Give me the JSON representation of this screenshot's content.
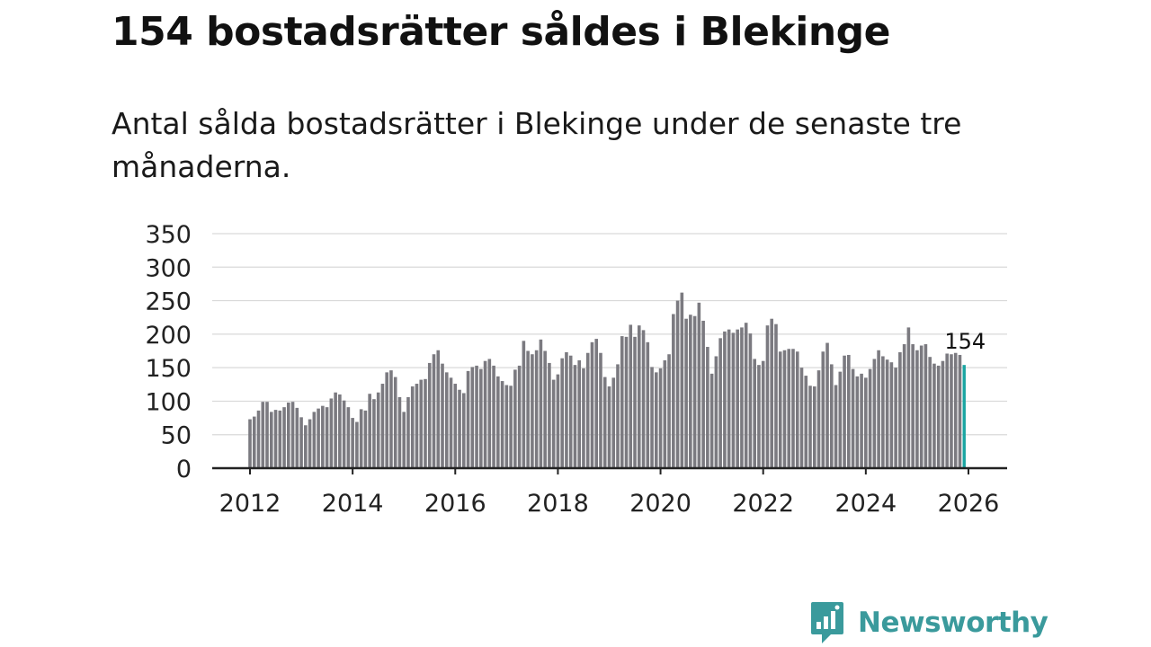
{
  "title": "154 bostadsrätter såldes i Blekinge",
  "subtitle": "Antal sålda bostadsrätter i Blekinge under de senaste tre månaderna.",
  "brand": {
    "name": "Newsworthy",
    "color": "#3a9a9c",
    "logo_icon": "bar-chart-speech-bubble-icon"
  },
  "colors": {
    "bar": "#7b7a80",
    "highlight": "#1aa5a2",
    "grid": "#d9d9d9",
    "axis": "#222222"
  },
  "chart_data": {
    "type": "bar",
    "title": "154 bostadsrätter såldes i Blekinge",
    "xlabel": "",
    "ylabel": "",
    "ylim": [
      0,
      350
    ],
    "yticks": [
      0,
      50,
      100,
      150,
      200,
      250,
      300,
      350
    ],
    "xticks": [
      2012,
      2014,
      2016,
      2018,
      2020,
      2022,
      2024,
      2026
    ],
    "xlim": [
      2012,
      2026
    ],
    "start": {
      "year": 2012,
      "month": 1
    },
    "highlight_label": "154",
    "values": [
      73,
      77,
      86,
      99,
      99,
      84,
      87,
      86,
      91,
      98,
      99,
      90,
      76,
      64,
      73,
      84,
      89,
      93,
      91,
      104,
      113,
      110,
      101,
      91,
      75,
      69,
      88,
      86,
      111,
      103,
      113,
      126,
      143,
      146,
      136,
      106,
      84,
      106,
      122,
      126,
      132,
      133,
      157,
      170,
      176,
      156,
      143,
      135,
      126,
      117,
      112,
      145,
      151,
      153,
      148,
      160,
      163,
      153,
      137,
      130,
      124,
      123,
      147,
      153,
      190,
      175,
      170,
      176,
      192,
      175,
      157,
      132,
      140,
      164,
      173,
      168,
      154,
      161,
      149,
      172,
      188,
      193,
      172,
      136,
      122,
      135,
      155,
      197,
      196,
      214,
      196,
      213,
      206,
      188,
      151,
      143,
      149,
      161,
      170,
      230,
      250,
      262,
      223,
      229,
      227,
      247,
      220,
      181,
      141,
      167,
      194,
      204,
      207,
      202,
      207,
      210,
      217,
      201,
      163,
      154,
      160,
      213,
      223,
      215,
      174,
      176,
      178,
      178,
      174,
      150,
      138,
      123,
      122,
      146,
      174,
      187,
      155,
      124,
      144,
      168,
      169,
      148,
      137,
      141,
      135,
      148,
      163,
      176,
      167,
      162,
      158,
      150,
      173,
      185,
      210,
      185,
      176,
      183,
      185,
      166,
      156,
      153,
      160,
      171,
      170,
      172,
      169,
      154
    ]
  }
}
